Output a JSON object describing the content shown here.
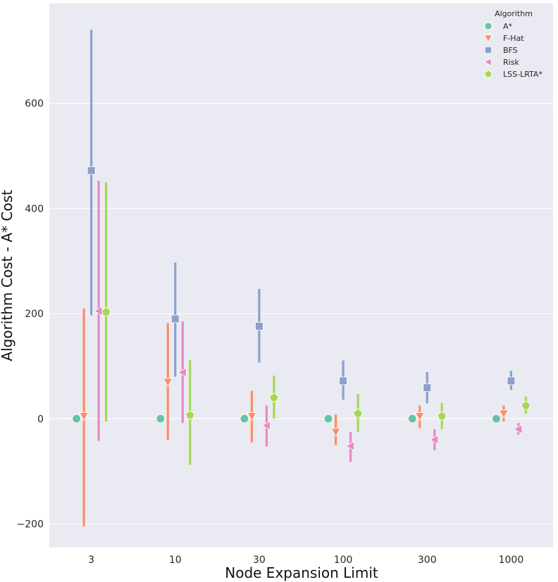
{
  "chart_data": {
    "type": "point",
    "xlabel": "Node Expansion Limit",
    "ylabel": "Algorithm Cost - A* Cost",
    "categories": [
      "3",
      "10",
      "30",
      "100",
      "300",
      "1000"
    ],
    "ylim": [
      -245,
      790
    ],
    "yticks": [
      -200,
      0,
      200,
      400,
      600
    ],
    "ytick_labels": [
      "−200",
      "0",
      "200",
      "400",
      "600"
    ],
    "grid": true,
    "legend": {
      "title": "Algorithm",
      "position": "top-right"
    },
    "series": [
      {
        "name": "A*",
        "marker": "circle",
        "color": "#66c2a5",
        "values": [
          0,
          0,
          0,
          0,
          0,
          0
        ],
        "ci_low": [
          0,
          0,
          0,
          0,
          0,
          0
        ],
        "ci_high": [
          0,
          0,
          0,
          0,
          0,
          0
        ]
      },
      {
        "name": "F-Hat",
        "marker": "triangle-down",
        "color": "#fc8d62",
        "values": [
          5,
          70,
          5,
          -25,
          5,
          10
        ],
        "ci_low": [
          -205,
          -40,
          -45,
          -50,
          -18,
          -5
        ],
        "ci_high": [
          210,
          182,
          53,
          8,
          25,
          25
        ]
      },
      {
        "name": "BFS",
        "marker": "square",
        "color": "#8da0cb",
        "values": [
          472,
          190,
          176,
          72,
          59,
          72
        ],
        "ci_low": [
          197,
          80,
          107,
          36,
          29,
          55
        ],
        "ci_high": [
          740,
          297,
          247,
          111,
          89,
          91
        ]
      },
      {
        "name": "Risk",
        "marker": "triangle-left",
        "color": "#e78ac3",
        "values": [
          205,
          88,
          -13,
          -52,
          -40,
          -20
        ],
        "ci_low": [
          -42,
          -8,
          -53,
          -82,
          -60,
          -30
        ],
        "ci_high": [
          453,
          185,
          25,
          -25,
          -20,
          -8
        ]
      },
      {
        "name": "LSS-LRTA*",
        "marker": "pentagon",
        "color": "#a6d854",
        "values": [
          203,
          7,
          40,
          10,
          5,
          25
        ],
        "ci_low": [
          -5,
          -88,
          0,
          -25,
          -20,
          10
        ],
        "ci_high": [
          450,
          112,
          82,
          47,
          30,
          42
        ]
      }
    ]
  }
}
